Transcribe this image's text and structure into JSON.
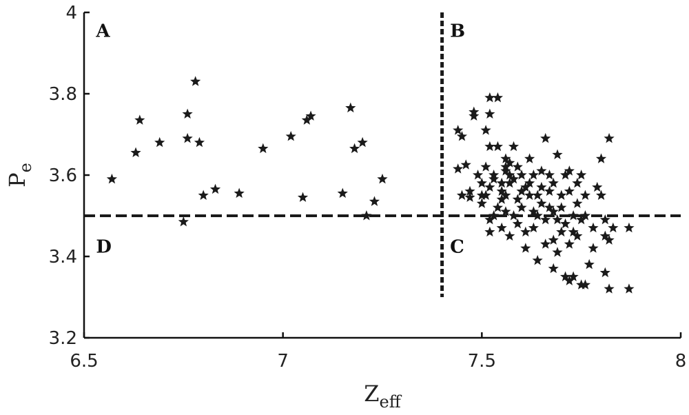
{
  "chart_data": {
    "type": "scatter",
    "title": "",
    "xlabel": {
      "main": "Z",
      "sub": "eff"
    },
    "ylabel": {
      "main": "P",
      "sub": "e"
    },
    "xlim": [
      6.5,
      8
    ],
    "ylim": [
      3.2,
      4
    ],
    "xticks": [
      6.5,
      7,
      7.5,
      8
    ],
    "xtick_labels": [
      "6.5",
      "7",
      "7.5",
      "8"
    ],
    "yticks": [
      3.2,
      3.4,
      3.6,
      3.8,
      4
    ],
    "ytick_labels": [
      "3.2",
      "3.4",
      "3.6",
      "3.8",
      "4"
    ],
    "grid": false,
    "marker": "star",
    "marker_color": "#1a1a1a",
    "divider_color": "#1a1a1a",
    "dividers": {
      "vertical": {
        "x": 7.4,
        "y_from": 3.3,
        "y_to": 4.0
      },
      "horizontal": {
        "y": 3.5,
        "x_from": 6.5,
        "x_to": 8.0
      }
    },
    "quadrant_labels": [
      {
        "text": "A",
        "x": 6.53,
        "y": 3.97
      },
      {
        "text": "B",
        "x": 7.42,
        "y": 3.97
      },
      {
        "text": "C",
        "x": 7.42,
        "y": 3.44
      },
      {
        "text": "D",
        "x": 6.53,
        "y": 3.44
      }
    ],
    "points": [
      [
        6.57,
        3.59
      ],
      [
        6.63,
        3.655
      ],
      [
        6.64,
        3.735
      ],
      [
        6.69,
        3.68
      ],
      [
        6.75,
        3.485
      ],
      [
        6.76,
        3.75
      ],
      [
        6.76,
        3.69
      ],
      [
        6.78,
        3.83
      ],
      [
        6.79,
        3.68
      ],
      [
        6.8,
        3.55
      ],
      [
        6.83,
        3.565
      ],
      [
        6.89,
        3.555
      ],
      [
        6.95,
        3.665
      ],
      [
        7.02,
        3.695
      ],
      [
        7.05,
        3.545
      ],
      [
        7.06,
        3.735
      ],
      [
        7.07,
        3.745
      ],
      [
        7.15,
        3.555
      ],
      [
        7.17,
        3.765
      ],
      [
        7.18,
        3.665
      ],
      [
        7.2,
        3.68
      ],
      [
        7.21,
        3.5
      ],
      [
        7.23,
        3.535
      ],
      [
        7.25,
        3.59
      ],
      [
        7.44,
        3.71
      ],
      [
        7.44,
        3.615
      ],
      [
        7.45,
        3.695
      ],
      [
        7.45,
        3.55
      ],
      [
        7.46,
        3.625
      ],
      [
        7.47,
        3.56
      ],
      [
        7.47,
        3.545
      ],
      [
        7.48,
        3.755
      ],
      [
        7.48,
        3.745
      ],
      [
        7.49,
        3.6
      ],
      [
        7.5,
        3.53
      ],
      [
        7.5,
        3.58
      ],
      [
        7.5,
        3.55
      ],
      [
        7.51,
        3.71
      ],
      [
        7.51,
        3.55
      ],
      [
        7.51,
        3.62
      ],
      [
        7.52,
        3.79
      ],
      [
        7.52,
        3.75
      ],
      [
        7.52,
        3.67
      ],
      [
        7.52,
        3.46
      ],
      [
        7.52,
        3.49
      ],
      [
        7.52,
        3.57
      ],
      [
        7.53,
        3.59
      ],
      [
        7.53,
        3.5
      ],
      [
        7.53,
        3.6
      ],
      [
        7.54,
        3.79
      ],
      [
        7.54,
        3.67
      ],
      [
        7.54,
        3.52
      ],
      [
        7.55,
        3.58
      ],
      [
        7.55,
        3.56
      ],
      [
        7.55,
        3.54
      ],
      [
        7.55,
        3.47
      ],
      [
        7.56,
        3.64
      ],
      [
        7.56,
        3.61
      ],
      [
        7.56,
        3.62
      ],
      [
        7.56,
        3.55
      ],
      [
        7.56,
        3.51
      ],
      [
        7.57,
        3.45
      ],
      [
        7.57,
        3.6
      ],
      [
        7.57,
        3.63
      ],
      [
        7.57,
        3.58
      ],
      [
        7.58,
        3.59
      ],
      [
        7.58,
        3.67
      ],
      [
        7.58,
        3.5
      ],
      [
        7.59,
        3.62
      ],
      [
        7.59,
        3.54
      ],
      [
        7.59,
        3.48
      ],
      [
        7.6,
        3.56
      ],
      [
        7.6,
        3.6
      ],
      [
        7.6,
        3.52
      ],
      [
        7.61,
        3.57
      ],
      [
        7.61,
        3.46
      ],
      [
        7.61,
        3.42
      ],
      [
        7.62,
        3.55
      ],
      [
        7.62,
        3.58
      ],
      [
        7.62,
        3.64
      ],
      [
        7.63,
        3.51
      ],
      [
        7.63,
        3.47
      ],
      [
        7.63,
        3.6
      ],
      [
        7.64,
        3.39
      ],
      [
        7.64,
        3.55
      ],
      [
        7.64,
        3.5
      ],
      [
        7.65,
        3.53
      ],
      [
        7.65,
        3.57
      ],
      [
        7.65,
        3.61
      ],
      [
        7.66,
        3.43
      ],
      [
        7.66,
        3.49
      ],
      [
        7.66,
        3.69
      ],
      [
        7.67,
        3.56
      ],
      [
        7.67,
        3.52
      ],
      [
        7.67,
        3.6
      ],
      [
        7.68,
        3.44
      ],
      [
        7.68,
        3.51
      ],
      [
        7.68,
        3.58
      ],
      [
        7.68,
        3.37
      ],
      [
        7.69,
        3.49
      ],
      [
        7.69,
        3.41
      ],
      [
        7.69,
        3.65
      ],
      [
        7.7,
        3.55
      ],
      [
        7.7,
        3.46
      ],
      [
        7.7,
        3.52
      ],
      [
        7.71,
        3.35
      ],
      [
        7.71,
        3.6
      ],
      [
        7.71,
        3.48
      ],
      [
        7.72,
        3.34
      ],
      [
        7.72,
        3.56
      ],
      [
        7.72,
        3.43
      ],
      [
        7.72,
        3.61
      ],
      [
        7.73,
        3.5
      ],
      [
        7.73,
        3.35
      ],
      [
        7.73,
        3.46
      ],
      [
        7.74,
        3.53
      ],
      [
        7.74,
        3.58
      ],
      [
        7.74,
        3.45
      ],
      [
        7.75,
        3.33
      ],
      [
        7.75,
        3.49
      ],
      [
        7.75,
        3.6
      ],
      [
        7.76,
        3.5
      ],
      [
        7.76,
        3.55
      ],
      [
        7.76,
        3.33
      ],
      [
        7.77,
        3.38
      ],
      [
        7.78,
        3.47
      ],
      [
        7.78,
        3.42
      ],
      [
        7.79,
        3.57
      ],
      [
        7.8,
        3.55
      ],
      [
        7.8,
        3.64
      ],
      [
        7.81,
        3.45
      ],
      [
        7.81,
        3.36
      ],
      [
        7.81,
        3.49
      ],
      [
        7.82,
        3.69
      ],
      [
        7.82,
        3.44
      ],
      [
        7.82,
        3.32
      ],
      [
        7.83,
        3.47
      ],
      [
        7.87,
        3.47
      ],
      [
        7.87,
        3.32
      ]
    ]
  }
}
